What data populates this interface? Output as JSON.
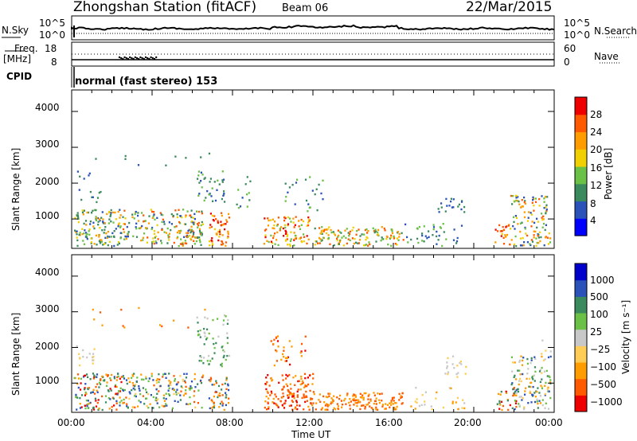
{
  "header": {
    "station": "Zhongshan Station (fitACF)",
    "beam": "Beam 06",
    "date": "22/Mar/2015"
  },
  "noise_panel": {
    "left_label": "N.Sky",
    "right_label": "N.Search",
    "left_ticks": [
      "10^5",
      "10^0"
    ],
    "right_ticks": [
      "10^5",
      "10^0"
    ]
  },
  "freq_panel": {
    "left_label_1": "Freq.",
    "left_label_2": "[MHz]",
    "right_label": "Nave",
    "left_ticks": [
      "18",
      "8"
    ],
    "right_ticks": [
      "60",
      "0"
    ]
  },
  "cpid": {
    "label": "CPID",
    "mode_text": "normal (fast stereo) 153"
  },
  "x_axis": {
    "label": "Time UT",
    "ticks": [
      "00:00",
      "04:00",
      "08:00",
      "12:00",
      "16:00",
      "20:00",
      "00:00"
    ]
  },
  "colors": {
    "power": [
      "#0000ff",
      "#2a52b8",
      "#3b8a5e",
      "#6bc046",
      "#f0d000",
      "#ff9c00",
      "#ff5a00",
      "#ee0000"
    ],
    "velocity": [
      "#ee0000",
      "#ff5a00",
      "#ff9c00",
      "#ffcc55",
      "#c8c8c8",
      "#6bc046",
      "#3b8a5e",
      "#2a52b8",
      "#0000cc"
    ]
  },
  "chart_data": [
    {
      "type": "heatmap",
      "name": "power",
      "ylabel": "Slant Range [km]",
      "xlabel": "",
      "y_ticks": [
        1000,
        2000,
        3000,
        4000
      ],
      "ylim": [
        180,
        4600
      ],
      "xlim_hours": [
        0,
        24
      ],
      "colorbar": {
        "label": "Power [dB]",
        "ticks": [
          "4",
          "8",
          "12",
          "16",
          "20",
          "24",
          "28"
        ],
        "range": [
          0,
          32
        ]
      }
    },
    {
      "type": "heatmap",
      "name": "velocity",
      "ylabel": "Slant Range [km]",
      "xlabel": "Time UT",
      "y_ticks": [
        1000,
        2000,
        3000,
        4000
      ],
      "ylim": [
        180,
        4600
      ],
      "xlim_hours": [
        0,
        24
      ],
      "colorbar": {
        "label": "Velocity [m s⁻¹]",
        "ticks": [
          "1000",
          "500",
          "100",
          "25",
          "−25",
          "−100",
          "−500",
          "−1000"
        ]
      }
    }
  ]
}
